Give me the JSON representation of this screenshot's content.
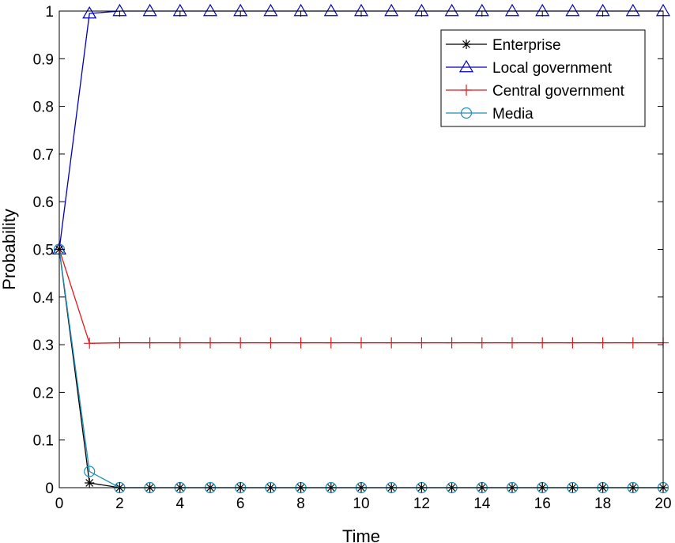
{
  "chart_data": {
    "type": "line",
    "xlabel": "Time",
    "ylabel": "Probability",
    "xlim": [
      0,
      20
    ],
    "ylim": [
      0,
      1
    ],
    "xticks": [
      0,
      2,
      4,
      6,
      8,
      10,
      12,
      14,
      16,
      18,
      20
    ],
    "yticks": [
      0,
      0.1,
      0.2,
      0.3,
      0.4,
      0.5,
      0.6,
      0.7,
      0.8,
      0.9,
      1
    ],
    "xtick_labels": [
      "0",
      "2",
      "4",
      "6",
      "8",
      "10",
      "12",
      "14",
      "16",
      "18",
      "20"
    ],
    "ytick_labels": [
      "0",
      "0.1",
      "0.2",
      "0.3",
      "0.4",
      "0.5",
      "0.6",
      "0.7",
      "0.8",
      "0.9",
      "1"
    ],
    "grid": false,
    "legend_position": "top-right",
    "x": [
      0,
      1,
      2,
      3,
      4,
      5,
      6,
      7,
      8,
      9,
      10,
      11,
      12,
      13,
      14,
      15,
      16,
      17,
      18,
      19,
      20
    ],
    "series": [
      {
        "name": "Enterprise",
        "color": "#000000",
        "marker": "asterisk",
        "values": [
          0.5,
          0.01,
          0,
          0,
          0,
          0,
          0,
          0,
          0,
          0,
          0,
          0,
          0,
          0,
          0,
          0,
          0,
          0,
          0,
          0,
          0
        ]
      },
      {
        "name": "Local government",
        "color": "#0000bb",
        "marker": "triangle",
        "values": [
          0.5,
          0.995,
          1,
          1,
          1,
          1,
          1,
          1,
          1,
          1,
          1,
          1,
          1,
          1,
          1,
          1,
          1,
          1,
          1,
          1,
          1
        ]
      },
      {
        "name": "Central government",
        "color": "#e31a1c",
        "marker": "plus",
        "values": [
          0.5,
          0.303,
          0.304,
          0.304,
          0.304,
          0.304,
          0.304,
          0.304,
          0.304,
          0.304,
          0.304,
          0.304,
          0.304,
          0.304,
          0.304,
          0.304,
          0.304,
          0.304,
          0.304,
          0.304,
          0.304
        ]
      },
      {
        "name": "Media",
        "color": "#1f8fb5",
        "marker": "circle",
        "values": [
          0.5,
          0.034,
          0,
          0,
          0,
          0,
          0,
          0,
          0,
          0,
          0,
          0,
          0,
          0,
          0,
          0,
          0,
          0,
          0,
          0,
          0
        ]
      }
    ]
  }
}
